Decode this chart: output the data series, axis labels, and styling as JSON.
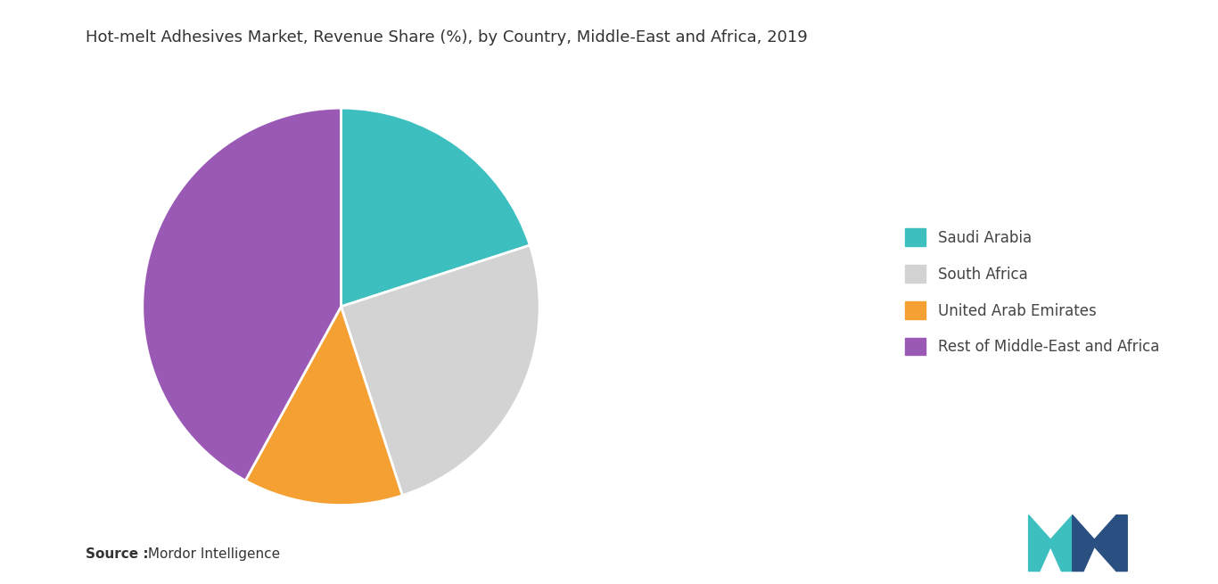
{
  "title": "Hot-melt Adhesives Market, Revenue Share (%), by Country, Middle-East and Africa, 2019",
  "labels": [
    "Saudi Arabia",
    "South Africa",
    "United Arab Emirates",
    "Rest of Middle-East and Africa"
  ],
  "values": [
    20,
    25,
    13,
    42
  ],
  "colors": [
    "#3dbfbf",
    "#d3d3d3",
    "#f5a033",
    "#9b59b6"
  ],
  "legend_labels": [
    "Saudi Arabia",
    "South Africa",
    "United Arab Emirates",
    "Rest of Middle-East and Africa"
  ],
  "source_bold": "Source :",
  "source_normal": " Mordor Intelligence",
  "background_color": "#ffffff",
  "start_angle": 90,
  "title_fontsize": 13,
  "legend_fontsize": 12,
  "logo_color_left": "#3dbfbf",
  "logo_color_right": "#2a5082"
}
